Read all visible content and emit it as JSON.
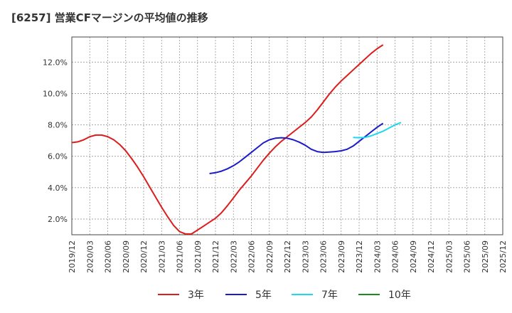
{
  "chart_data": {
    "type": "line",
    "title": "[6257]  営業CFマージンの平均値の推移",
    "xlabel": "",
    "ylabel": "",
    "x_ticks": [
      "2019/12",
      "2020/03",
      "2020/06",
      "2020/09",
      "2020/12",
      "2021/03",
      "2021/06",
      "2021/09",
      "2021/12",
      "2022/03",
      "2022/06",
      "2022/09",
      "2022/12",
      "2023/03",
      "2023/06",
      "2023/09",
      "2023/12",
      "2024/03",
      "2024/06",
      "2024/09",
      "2024/12",
      "2025/03",
      "2025/06",
      "2025/09",
      "2025/12"
    ],
    "y_ticks": [
      "2.0%",
      "4.0%",
      "6.0%",
      "8.0%",
      "10.0%",
      "12.0%"
    ],
    "ylim": [
      1.0,
      13.6
    ],
    "grid": true,
    "legend_position": "bottom",
    "series": [
      {
        "name": "3年",
        "color": "#dd1c1c",
        "points": [
          [
            "2019/12",
            6.87
          ],
          [
            "2020/01",
            6.92
          ],
          [
            "2020/02",
            7.05
          ],
          [
            "2020/03",
            7.25
          ],
          [
            "2020/04",
            7.35
          ],
          [
            "2020/05",
            7.35
          ],
          [
            "2020/06",
            7.25
          ],
          [
            "2020/07",
            7.05
          ],
          [
            "2020/08",
            6.75
          ],
          [
            "2020/09",
            6.35
          ],
          [
            "2020/10",
            5.85
          ],
          [
            "2020/11",
            5.3
          ],
          [
            "2020/12",
            4.7
          ],
          [
            "2021/01",
            4.05
          ],
          [
            "2021/02",
            3.4
          ],
          [
            "2021/03",
            2.75
          ],
          [
            "2021/04",
            2.15
          ],
          [
            "2021/05",
            1.6
          ],
          [
            "2021/06",
            1.2
          ],
          [
            "2021/07",
            1.05
          ],
          [
            "2021/08",
            1.05
          ],
          [
            "2021/09",
            1.3
          ],
          [
            "2021/10",
            1.55
          ],
          [
            "2021/11",
            1.8
          ],
          [
            "2021/12",
            2.05
          ],
          [
            "2022/01",
            2.4
          ],
          [
            "2022/02",
            2.85
          ],
          [
            "2022/03",
            3.35
          ],
          [
            "2022/04",
            3.85
          ],
          [
            "2022/05",
            4.3
          ],
          [
            "2022/06",
            4.75
          ],
          [
            "2022/07",
            5.25
          ],
          [
            "2022/08",
            5.75
          ],
          [
            "2022/09",
            6.2
          ],
          [
            "2022/10",
            6.6
          ],
          [
            "2022/11",
            6.95
          ],
          [
            "2022/12",
            7.25
          ],
          [
            "2023/01",
            7.55
          ],
          [
            "2023/02",
            7.85
          ],
          [
            "2023/03",
            8.15
          ],
          [
            "2023/04",
            8.5
          ],
          [
            "2023/05",
            8.95
          ],
          [
            "2023/06",
            9.45
          ],
          [
            "2023/07",
            9.95
          ],
          [
            "2023/08",
            10.4
          ],
          [
            "2023/09",
            10.8
          ],
          [
            "2023/10",
            11.15
          ],
          [
            "2023/11",
            11.5
          ],
          [
            "2023/12",
            11.85
          ],
          [
            "2024/01",
            12.2
          ],
          [
            "2024/02",
            12.55
          ],
          [
            "2024/03",
            12.85
          ],
          [
            "2024/04",
            13.1
          ]
        ]
      },
      {
        "name": "5年",
        "color": "#1c1ccc",
        "points": [
          [
            "2021/11",
            4.9
          ],
          [
            "2021/12",
            4.95
          ],
          [
            "2022/01",
            5.05
          ],
          [
            "2022/02",
            5.2
          ],
          [
            "2022/03",
            5.4
          ],
          [
            "2022/04",
            5.65
          ],
          [
            "2022/05",
            5.95
          ],
          [
            "2022/06",
            6.25
          ],
          [
            "2022/07",
            6.55
          ],
          [
            "2022/08",
            6.85
          ],
          [
            "2022/09",
            7.05
          ],
          [
            "2022/10",
            7.15
          ],
          [
            "2022/11",
            7.18
          ],
          [
            "2022/12",
            7.15
          ],
          [
            "2023/01",
            7.05
          ],
          [
            "2023/02",
            6.9
          ],
          [
            "2023/03",
            6.7
          ],
          [
            "2023/04",
            6.45
          ],
          [
            "2023/05",
            6.3
          ],
          [
            "2023/06",
            6.25
          ],
          [
            "2023/07",
            6.27
          ],
          [
            "2023/08",
            6.3
          ],
          [
            "2023/09",
            6.35
          ],
          [
            "2023/10",
            6.45
          ],
          [
            "2023/11",
            6.65
          ],
          [
            "2023/12",
            6.95
          ],
          [
            "2024/01",
            7.25
          ],
          [
            "2024/02",
            7.55
          ],
          [
            "2024/03",
            7.85
          ],
          [
            "2024/04",
            8.1
          ]
        ]
      },
      {
        "name": "7年",
        "color": "#1cd8f0",
        "points": [
          [
            "2023/11",
            7.2
          ],
          [
            "2023/12",
            7.18
          ],
          [
            "2024/01",
            7.2
          ],
          [
            "2024/02",
            7.3
          ],
          [
            "2024/03",
            7.45
          ],
          [
            "2024/04",
            7.6
          ],
          [
            "2024/05",
            7.8
          ],
          [
            "2024/06",
            8.0
          ],
          [
            "2024/07",
            8.15
          ]
        ]
      },
      {
        "name": "10年",
        "color": "#1c8c1c",
        "points": []
      }
    ]
  }
}
